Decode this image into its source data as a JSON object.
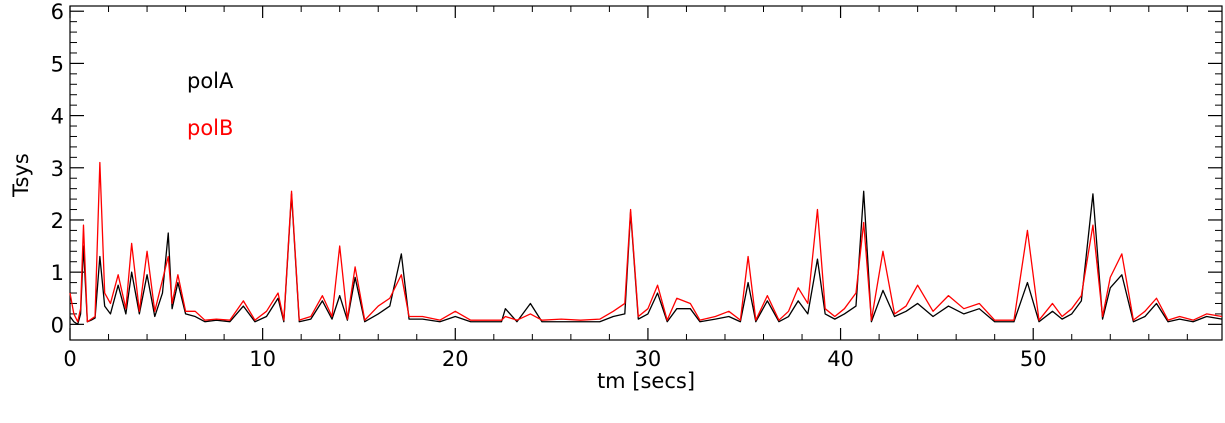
{
  "chart_data": {
    "type": "line",
    "title": "",
    "xlabel": "tm [secs]",
    "ylabel": "Tsys",
    "xlim": [
      0,
      59.8
    ],
    "ylim": [
      -0.3,
      6.1
    ],
    "x_ticks": [
      0,
      10,
      20,
      30,
      40,
      50
    ],
    "y_ticks": [
      0,
      1,
      2,
      3,
      4,
      5,
      6
    ],
    "x_tick_labels": [
      "0",
      "10",
      "20",
      "30",
      "40",
      "50"
    ],
    "y_tick_labels": [
      "0",
      "1",
      "2",
      "3",
      "4",
      "5",
      "6"
    ],
    "grid": false,
    "legend": {
      "placement": "top-left",
      "entries": [
        {
          "label": "polA",
          "color": "#000000"
        },
        {
          "label": "polB",
          "color": "#ff0000"
        }
      ]
    },
    "x": [
      0,
      0.2,
      0.4,
      0.55,
      0.7,
      0.9,
      1.1,
      1.3,
      1.55,
      1.8,
      2.1,
      2.5,
      2.9,
      3.2,
      3.6,
      4.0,
      4.4,
      4.8,
      5.1,
      5.3,
      5.6,
      6.0,
      6.5,
      7.0,
      7.6,
      8.3,
      9.0,
      9.6,
      10.2,
      10.8,
      11.1,
      11.5,
      11.9,
      12.5,
      13.1,
      13.6,
      14.0,
      14.4,
      14.8,
      15.3,
      16.0,
      16.6,
      17.2,
      17.6,
      18.3,
      19.2,
      20.0,
      20.8,
      21.6,
      22.4,
      22.6,
      23.2,
      23.9,
      24.5,
      25.5,
      26.5,
      27.5,
      28.2,
      28.8,
      29.1,
      29.5,
      30.0,
      30.5,
      31.0,
      31.5,
      32.2,
      32.7,
      33.5,
      34.2,
      34.8,
      35.2,
      35.6,
      36.2,
      36.8,
      37.3,
      37.8,
      38.3,
      38.8,
      39.2,
      39.7,
      40.2,
      40.8,
      41.2,
      41.6,
      42.2,
      42.8,
      43.4,
      44.0,
      44.8,
      45.6,
      46.4,
      47.2,
      48.0,
      49.0,
      49.7,
      50.3,
      51.0,
      51.5,
      52.0,
      52.5,
      53.1,
      53.6,
      54.0,
      54.6,
      55.2,
      55.8,
      56.4,
      57.0,
      57.6,
      58.3,
      59.0,
      59.8
    ],
    "series": [
      {
        "name": "polA",
        "color": "#000000",
        "values": [
          0.15,
          0.05,
          0.0,
          0.2,
          1.5,
          0.05,
          0.08,
          0.12,
          1.3,
          0.35,
          0.2,
          0.75,
          0.2,
          1.0,
          0.2,
          0.95,
          0.15,
          0.6,
          1.75,
          0.3,
          0.8,
          0.2,
          0.15,
          0.05,
          0.08,
          0.05,
          0.35,
          0.05,
          0.15,
          0.5,
          0.05,
          2.5,
          0.05,
          0.1,
          0.45,
          0.1,
          0.55,
          0.08,
          0.9,
          0.05,
          0.2,
          0.35,
          1.35,
          0.1,
          0.1,
          0.05,
          0.15,
          0.05,
          0.05,
          0.05,
          0.3,
          0.05,
          0.4,
          0.05,
          0.05,
          0.05,
          0.05,
          0.15,
          0.2,
          2.15,
          0.1,
          0.2,
          0.6,
          0.05,
          0.3,
          0.3,
          0.05,
          0.1,
          0.15,
          0.05,
          0.8,
          0.05,
          0.45,
          0.05,
          0.15,
          0.45,
          0.2,
          1.25,
          0.2,
          0.1,
          0.2,
          0.35,
          2.55,
          0.05,
          0.65,
          0.15,
          0.25,
          0.4,
          0.15,
          0.35,
          0.2,
          0.3,
          0.05,
          0.05,
          0.8,
          0.05,
          0.25,
          0.1,
          0.2,
          0.45,
          2.5,
          0.1,
          0.7,
          0.95,
          0.05,
          0.15,
          0.4,
          0.05,
          0.1,
          0.05,
          0.15,
          0.1
        ]
      },
      {
        "name": "polB",
        "color": "#ff0000",
        "values": [
          0.6,
          0.2,
          0.05,
          0.3,
          1.9,
          0.05,
          0.1,
          0.15,
          3.1,
          0.6,
          0.4,
          0.95,
          0.3,
          1.55,
          0.25,
          1.4,
          0.25,
          0.85,
          1.3,
          0.4,
          0.95,
          0.25,
          0.25,
          0.08,
          0.1,
          0.08,
          0.45,
          0.08,
          0.25,
          0.6,
          0.08,
          2.55,
          0.08,
          0.15,
          0.55,
          0.15,
          1.5,
          0.1,
          1.1,
          0.08,
          0.35,
          0.5,
          0.95,
          0.15,
          0.15,
          0.08,
          0.25,
          0.08,
          0.08,
          0.08,
          0.15,
          0.08,
          0.2,
          0.08,
          0.1,
          0.08,
          0.1,
          0.25,
          0.4,
          2.2,
          0.15,
          0.3,
          0.75,
          0.08,
          0.5,
          0.4,
          0.08,
          0.15,
          0.25,
          0.08,
          1.3,
          0.08,
          0.55,
          0.08,
          0.25,
          0.7,
          0.4,
          2.2,
          0.3,
          0.15,
          0.3,
          0.6,
          1.95,
          0.08,
          1.4,
          0.2,
          0.35,
          0.75,
          0.25,
          0.55,
          0.3,
          0.4,
          0.08,
          0.08,
          1.8,
          0.08,
          0.4,
          0.15,
          0.3,
          0.55,
          1.9,
          0.15,
          0.9,
          1.35,
          0.08,
          0.25,
          0.5,
          0.08,
          0.15,
          0.08,
          0.2,
          0.15
        ]
      }
    ]
  }
}
